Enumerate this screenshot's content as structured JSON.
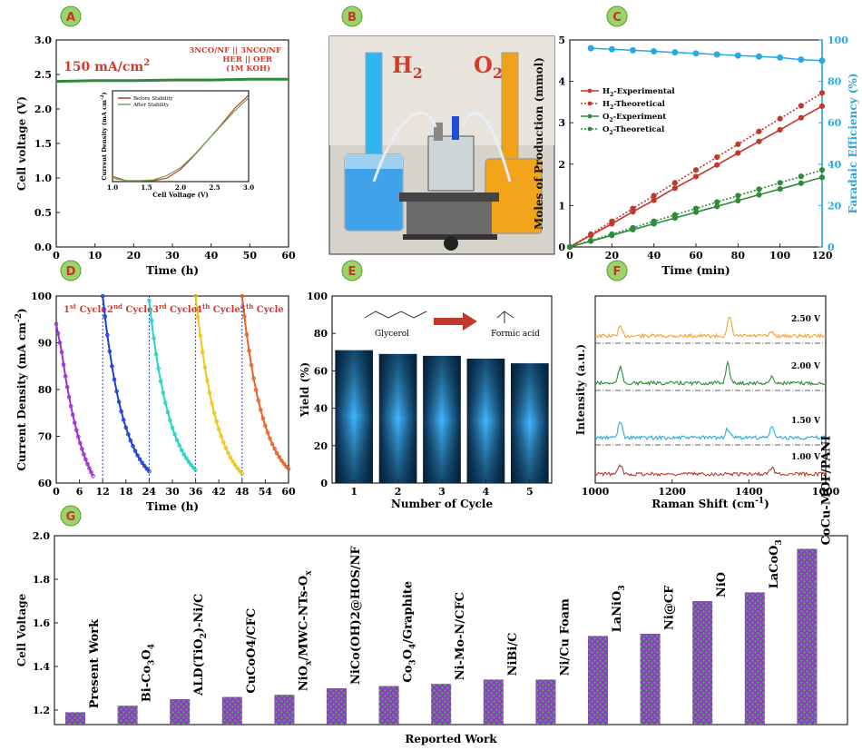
{
  "panels": {
    "A": "A",
    "B": "B",
    "C": "C",
    "D": "D",
    "E": "E",
    "F": "F",
    "G": "G"
  },
  "photo": {
    "label_h2": "H",
    "label_h2_sub": "2",
    "label_o2": "O",
    "label_o2_sub": "2"
  },
  "chart_data": [
    {
      "id": "A",
      "type": "line",
      "xlabel": "Time (h)",
      "ylabel": "Cell voltage (V)",
      "xlim": [
        0,
        60
      ],
      "ylim": [
        0,
        3.0
      ],
      "xticks": [
        "0",
        "10",
        "20",
        "30",
        "40",
        "50",
        "60"
      ],
      "yticks": [
        "0.0",
        "0.5",
        "1.0",
        "1.5",
        "2.0",
        "2.5",
        "3.0"
      ],
      "annotation_current": "150 mA/cm",
      "annotation_current_sup": "2",
      "annotation_cell_1": "3NCO/NF || 3NCO/NF",
      "annotation_cell_2": "HER || OER",
      "annotation_cell_3": "(1M KOH)",
      "series": [
        {
          "color": "#2e8b3a",
          "x": [
            0,
            10,
            20,
            30,
            40,
            50,
            60
          ],
          "y": [
            2.4,
            2.41,
            2.41,
            2.42,
            2.42,
            2.43,
            2.43
          ]
        }
      ],
      "inset": {
        "xlabel": "Cell Voltage (V)",
        "ylabel": "Current Density (mA cm",
        "ylabel_sup": "-2",
        "ylabel_end": ")",
        "xlim": [
          1.0,
          3.0
        ],
        "xticks": [
          "1.0",
          "1.5",
          "2.0",
          "2.5",
          "3.0"
        ],
        "series": [
          {
            "name": "Before Stability",
            "color": "#c0392b",
            "x": [
              1.0,
              1.2,
              1.4,
              1.6,
              1.8,
              2.0,
              2.2,
              2.4,
              2.6,
              2.8,
              3.0
            ],
            "y": [
              0.06,
              0.01,
              0.01,
              0.01,
              0.04,
              0.14,
              0.3,
              0.48,
              0.66,
              0.85,
              1.0
            ]
          },
          {
            "name": "After Stability",
            "color": "#6aa84f",
            "x": [
              1.0,
              1.2,
              1.4,
              1.6,
              1.8,
              2.0,
              2.2,
              2.4,
              2.6,
              2.8,
              3.0
            ],
            "y": [
              0.04,
              0.01,
              0.01,
              0.02,
              0.07,
              0.16,
              0.31,
              0.48,
              0.65,
              0.82,
              0.97
            ]
          }
        ]
      }
    },
    {
      "id": "C",
      "type": "line",
      "xlabel": "Time (min)",
      "ylabel": "Moles of Production (mmol)",
      "ylabel_right": "Faradaic Efficiency (%)",
      "xlim": [
        0,
        120
      ],
      "ylim": [
        0,
        5
      ],
      "ylim_right": [
        0,
        100
      ],
      "xticks": [
        "0",
        "20",
        "40",
        "60",
        "80",
        "100",
        "120"
      ],
      "yticks": [
        "0",
        "1",
        "2",
        "3",
        "4",
        "5"
      ],
      "yticks_right": [
        "0",
        "20",
        "40",
        "60",
        "80",
        "100"
      ],
      "x": [
        0,
        10,
        20,
        30,
        40,
        50,
        60,
        70,
        80,
        90,
        100,
        110,
        120
      ],
      "series": [
        {
          "name": "H",
          "sub": "2",
          "suffix": "-Experimental",
          "color": "#c0392b",
          "dash": false,
          "y": [
            0,
            0.28,
            0.56,
            0.85,
            1.13,
            1.42,
            1.7,
            1.98,
            2.27,
            2.55,
            2.83,
            3.12,
            3.4
          ]
        },
        {
          "name": "H",
          "sub": "2",
          "suffix": "-Theoretical",
          "color": "#c0392b",
          "dash": true,
          "y": [
            0,
            0.31,
            0.62,
            0.93,
            1.24,
            1.55,
            1.86,
            2.17,
            2.48,
            2.79,
            3.1,
            3.41,
            3.72
          ]
        },
        {
          "name": "O",
          "sub": "2",
          "suffix": "-Experiment",
          "color": "#2e8b3a",
          "dash": false,
          "y": [
            0,
            0.14,
            0.28,
            0.42,
            0.56,
            0.7,
            0.84,
            0.98,
            1.12,
            1.26,
            1.4,
            1.54,
            1.68
          ]
        },
        {
          "name": "O",
          "sub": "2",
          "suffix": "-Theoretical",
          "color": "#2e8b3a",
          "dash": true,
          "y": [
            0,
            0.155,
            0.31,
            0.465,
            0.62,
            0.775,
            0.93,
            1.085,
            1.24,
            1.395,
            1.55,
            1.705,
            1.86
          ]
        }
      ],
      "efficiency": {
        "color": "#29a9e0",
        "x": [
          10,
          20,
          30,
          40,
          50,
          60,
          70,
          80,
          90,
          100,
          110,
          120
        ],
        "y": [
          96,
          95.5,
          95,
          94.5,
          94,
          93.5,
          93,
          92.5,
          92,
          91.5,
          90.5,
          90
        ]
      }
    },
    {
      "id": "D",
      "type": "line",
      "xlabel": "Time (h)",
      "ylabel": "Current Density (mA cm",
      "ylabel_sup": "-2",
      "ylabel_end": ")",
      "xlim": [
        0,
        60
      ],
      "ylim": [
        60,
        100
      ],
      "xticks": [
        "0",
        "6",
        "12",
        "18",
        "24",
        "30",
        "36",
        "42",
        "48",
        "54",
        "60"
      ],
      "yticks": [
        "60",
        "70",
        "80",
        "90",
        "100"
      ],
      "cycles": [
        {
          "label": "1",
          "sup": "st",
          "tail": " Cycle",
          "color": "#9b30d0",
          "t0": 0,
          "t1": 9.5,
          "start": 94,
          "end": 61.5
        },
        {
          "label": "2",
          "sup": "nd",
          "tail": " Cycle",
          "color": "#1f3fd6",
          "t0": 12,
          "t1": 24,
          "start": 100,
          "end": 62.5
        },
        {
          "label": "3",
          "sup": "rd",
          "tail": " Cycle",
          "color": "#27d3c3",
          "t0": 24,
          "t1": 36,
          "start": 99,
          "end": 62.8
        },
        {
          "label": "4",
          "sup": "th",
          "tail": " Cycle",
          "color": "#f0c419",
          "t0": 36,
          "t1": 48,
          "start": 100,
          "end": 62
        },
        {
          "label": "5",
          "sup": "th",
          "tail": " Cycle",
          "color": "#e8622a",
          "t0": 48,
          "t1": 60,
          "start": 100,
          "end": 63
        }
      ]
    },
    {
      "id": "E",
      "type": "bar",
      "xlabel": "Number of Cycle",
      "ylabel": "Yield (%)",
      "categories": [
        "1",
        "2",
        "3",
        "4",
        "5"
      ],
      "values": [
        71,
        69,
        68,
        66.5,
        64
      ],
      "ylim": [
        0,
        100
      ],
      "yticks": [
        "0",
        "20",
        "40",
        "60",
        "80",
        "100"
      ],
      "label_glycerol": "Glycerol",
      "label_formic": "Formic acid"
    },
    {
      "id": "F",
      "type": "line",
      "xlabel": "Raman Shift (cm",
      "xlabel_sup": "-1",
      "xlabel_end": ")",
      "ylabel": "Intensity (a.u.)",
      "xlim": [
        1000,
        1600
      ],
      "xticks": [
        "1000",
        "1200",
        "1400",
        "1600"
      ],
      "series": [
        {
          "name": "2.50 V",
          "color": "#f5a033",
          "peaks": [
            [
              1065,
              0.9
            ],
            [
              1350,
              1.9
            ],
            [
              1460,
              0.4
            ]
          ]
        },
        {
          "name": "2.00 V",
          "color": "#2e8b3a",
          "peaks": [
            [
              1065,
              1.6
            ],
            [
              1345,
              2.1
            ],
            [
              1460,
              0.6
            ]
          ]
        },
        {
          "name": "1.50 V",
          "color": "#29a9e0",
          "peaks": [
            [
              1065,
              1.7
            ],
            [
              1345,
              0.9
            ],
            [
              1460,
              1.1
            ]
          ]
        },
        {
          "name": "1.00 V",
          "color": "#c0392b",
          "peaks": [
            [
              1065,
              0.9
            ],
            [
              1460,
              0.7
            ]
          ]
        }
      ]
    },
    {
      "id": "G",
      "type": "bar",
      "xlabel": "Reported Work",
      "ylabel": "Cell Voltage",
      "ylim": [
        1.2,
        2.0
      ],
      "yticks": [
        "1.2",
        "1.4",
        "1.6",
        "1.8",
        "2.0"
      ],
      "categories": [
        {
          "text": "Present Work"
        },
        {
          "text": "Bi-Co",
          "sub": "3",
          "tail": "O",
          "sub2": "4"
        },
        {
          "text": "ALD(TiO",
          "sub": "2",
          "tail": ")-Ni/C"
        },
        {
          "text": "CuCoO4/CFC"
        },
        {
          "text": "NiO",
          "sub": "x",
          "tail": "/MWC-NTs-O",
          "sub2": "x"
        },
        {
          "text": "NiCo(OH)2@HOS/NF"
        },
        {
          "text": "Co",
          "sub": "3",
          "tail": "O",
          "sub2": "4",
          "tail2": "/Graphite"
        },
        {
          "text": "Ni-Mo-N/CFC"
        },
        {
          "text": "NiBi/C"
        },
        {
          "text": "Ni/Cu Foam"
        },
        {
          "text": "LaNiO",
          "sub": "3"
        },
        {
          "text": "Ni@CF"
        },
        {
          "text": "NiO"
        },
        {
          "text": "LaCoO",
          "sub": "3"
        },
        {
          "text": "CoCu-MOF/PANI"
        }
      ],
      "values": [
        1.19,
        1.22,
        1.25,
        1.26,
        1.27,
        1.3,
        1.31,
        1.32,
        1.34,
        1.34,
        1.54,
        1.55,
        1.7,
        1.74,
        1.94
      ]
    }
  ]
}
